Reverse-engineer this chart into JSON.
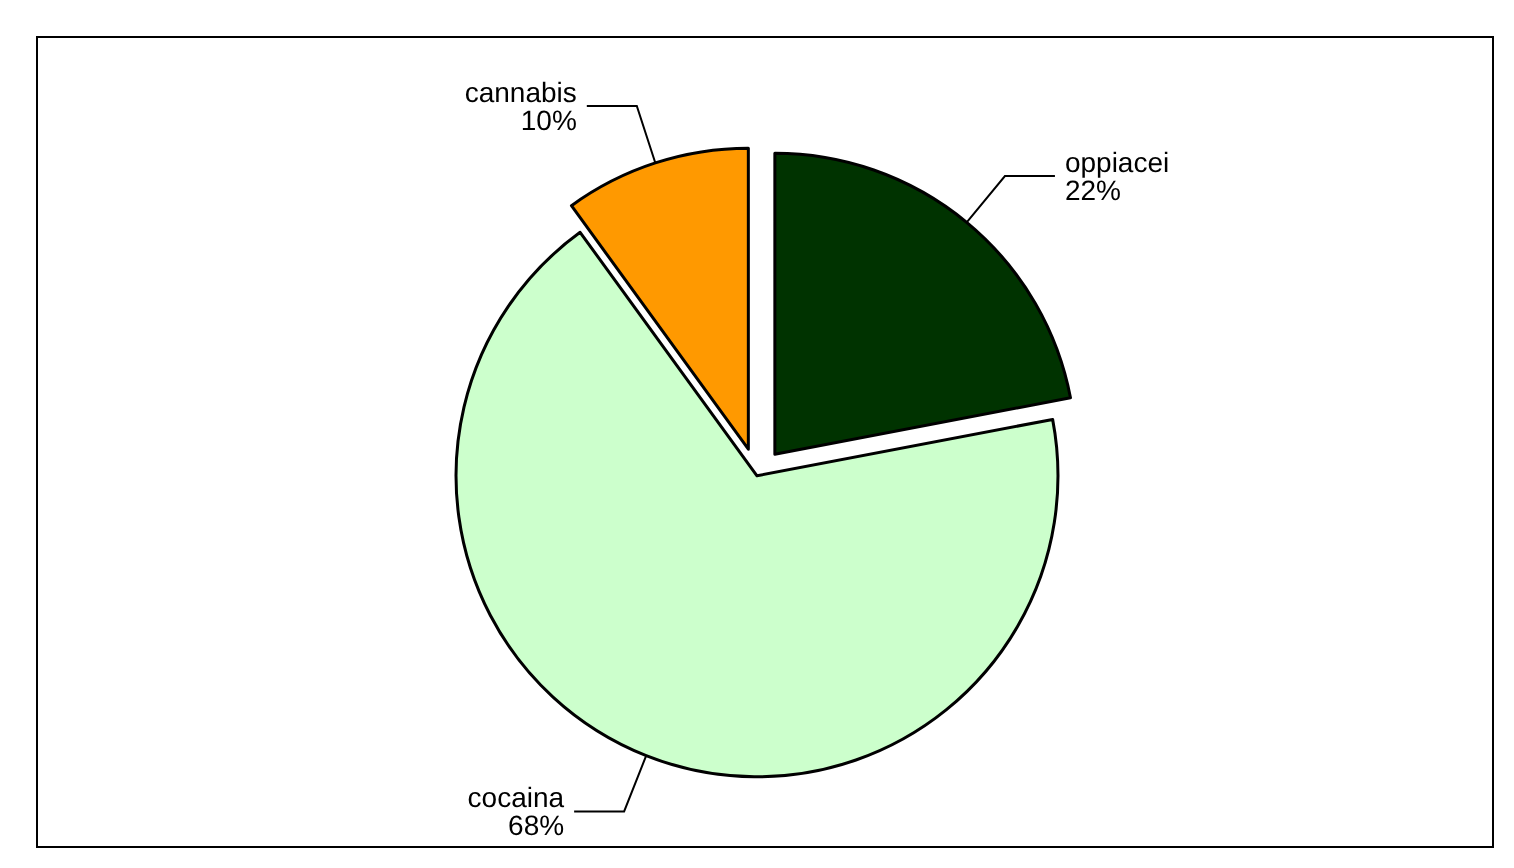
{
  "chart_data": {
    "type": "pie",
    "categories": [
      "oppiacei",
      "cocaina",
      "cannabis"
    ],
    "values": [
      22,
      68,
      10
    ],
    "value_labels": [
      "22%",
      "68%",
      "10%"
    ],
    "colors": [
      "#003300",
      "#ccffcc",
      "#ff9900"
    ]
  }
}
